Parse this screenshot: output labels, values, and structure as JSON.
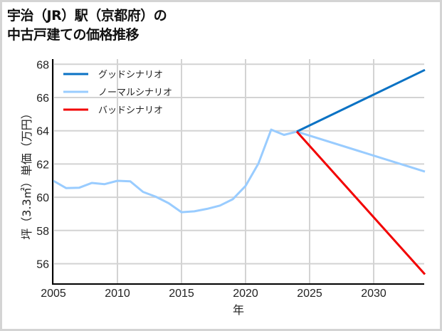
{
  "title": {
    "line1": "宇治（JR）駅（京都府）の",
    "line2": "中古戸建ての価格推移"
  },
  "axes": {
    "ylabel": "坪（3.3㎡）単価（万円）",
    "xlabel": "年"
  },
  "colors": {
    "good": "#0a72c4",
    "normal": "#99ccff",
    "bad": "#f20000",
    "grid": "#d3d3d3",
    "border": "#d4d4d4"
  },
  "chart_data": {
    "type": "line",
    "title": "宇治（JR）駅（京都府）の中古戸建ての価格推移",
    "xlabel": "年",
    "ylabel": "坪（3.3㎡）単価（万円）",
    "xlim": [
      2005,
      2034
    ],
    "ylim": [
      54.7,
      68.3
    ],
    "xticks": [
      2005,
      2010,
      2015,
      2020,
      2025,
      2030
    ],
    "yticks": [
      56,
      58,
      60,
      62,
      64,
      66,
      68
    ],
    "grid": true,
    "legend_position": "upper left",
    "series": [
      {
        "name": "グッドシナリオ",
        "color": "#0a72c4",
        "x": [
          2024,
          2034
        ],
        "y": [
          63.95,
          67.66
        ]
      },
      {
        "name": "ノーマルシナリオ",
        "color": "#99ccff",
        "x": [
          2005,
          2006,
          2007,
          2008,
          2009,
          2010,
          2011,
          2012,
          2013,
          2014,
          2015,
          2016,
          2017,
          2018,
          2019,
          2020,
          2021,
          2022,
          2023,
          2024,
          2034
        ],
        "y": [
          60.99,
          60.55,
          60.57,
          60.86,
          60.79,
          60.99,
          60.96,
          60.32,
          60.03,
          59.64,
          59.1,
          59.15,
          59.3,
          59.5,
          59.88,
          60.68,
          62.02,
          64.07,
          63.75,
          63.95,
          61.54
        ]
      },
      {
        "name": "バッドシナリオ",
        "color": "#f20000",
        "x": [
          2024,
          2034
        ],
        "y": [
          63.95,
          55.36
        ]
      }
    ]
  }
}
